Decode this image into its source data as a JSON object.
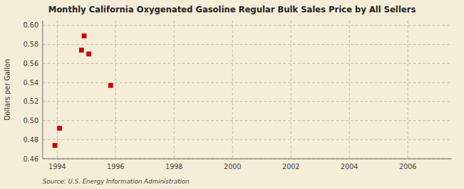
{
  "chart_data": {
    "type": "scatter",
    "title": "Monthly California Oxygenated Gasoline Regular Bulk Sales Price by All Sellers",
    "y_label": "Dollars per Gallon",
    "source": "Source: U.S. Energy Information Administration",
    "x": [
      1993.92,
      1994.08,
      1994.83,
      1994.92,
      1995.08,
      1995.83
    ],
    "values": [
      0.474,
      0.492,
      0.574,
      0.589,
      0.57,
      0.537
    ],
    "color": "#cc0000",
    "marker": "square",
    "xlim": [
      1993.5,
      2007.5
    ],
    "ylim": [
      0.46,
      0.605
    ],
    "xticks": [
      1994,
      1996,
      1998,
      2000,
      2002,
      2004,
      2006
    ],
    "yticks": [
      0.46,
      0.48,
      {
        "value": 0.5,
        "label": "0.50"
      },
      0.52,
      0.54,
      0.56,
      0.58,
      {
        "value": 0.6,
        "label": "0.60"
      }
    ],
    "grid": true
  }
}
